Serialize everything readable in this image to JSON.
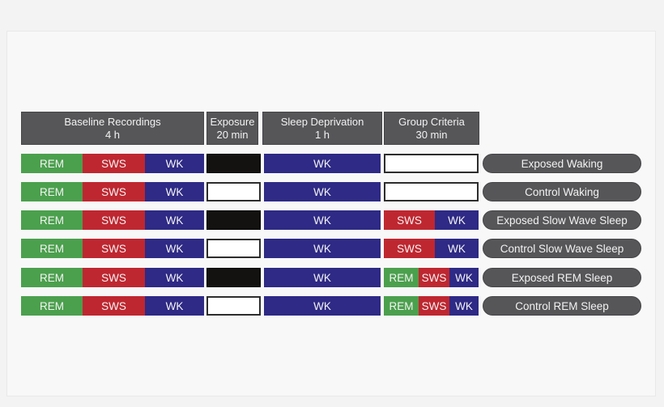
{
  "figure": {
    "description": "sleep-experiment protocol timeline diagram"
  },
  "colors": {
    "rem_green": "#4BA04D",
    "sws_red": "#BF2730",
    "wk_navy": "#2E2A85",
    "header_gray": "#565659",
    "exposure_filled_black": "#141211",
    "empty_box_white": "#FFFFFF"
  },
  "stages": {
    "rem": "REM",
    "sws": "SWS",
    "wk": "WK"
  },
  "header": {
    "columns": [
      {
        "title": "Baseline Recordings",
        "duration": "4 h"
      },
      {
        "title": "Exposure",
        "duration": "20 min"
      },
      {
        "title": "Sleep Deprivation",
        "duration": "1 h"
      },
      {
        "title": "Group Criteria",
        "duration": "30 min"
      }
    ]
  },
  "rows": [
    {
      "label": "Exposed Waking",
      "baseline": [
        "REM",
        "SWS",
        "WK"
      ],
      "exposure_filled": true,
      "sleep_deprivation": "WK",
      "group_criteria": []
    },
    {
      "label": "Control Waking",
      "baseline": [
        "REM",
        "SWS",
        "WK"
      ],
      "exposure_filled": false,
      "sleep_deprivation": "WK",
      "group_criteria": []
    },
    {
      "label": "Exposed Slow Wave Sleep",
      "baseline": [
        "REM",
        "SWS",
        "WK"
      ],
      "exposure_filled": true,
      "sleep_deprivation": "WK",
      "group_criteria": [
        "SWS",
        "WK"
      ]
    },
    {
      "label": "Control Slow Wave Sleep",
      "baseline": [
        "REM",
        "SWS",
        "WK"
      ],
      "exposure_filled": false,
      "sleep_deprivation": "WK",
      "group_criteria": [
        "SWS",
        "WK"
      ]
    },
    {
      "label": "Exposed REM Sleep",
      "baseline": [
        "REM",
        "SWS",
        "WK"
      ],
      "exposure_filled": true,
      "sleep_deprivation": "WK",
      "group_criteria": [
        "REM",
        "SWS",
        "WK"
      ]
    },
    {
      "label": "Control REM Sleep",
      "baseline": [
        "REM",
        "SWS",
        "WK"
      ],
      "exposure_filled": false,
      "sleep_deprivation": "WK",
      "group_criteria": [
        "REM",
        "SWS",
        "WK"
      ]
    }
  ]
}
